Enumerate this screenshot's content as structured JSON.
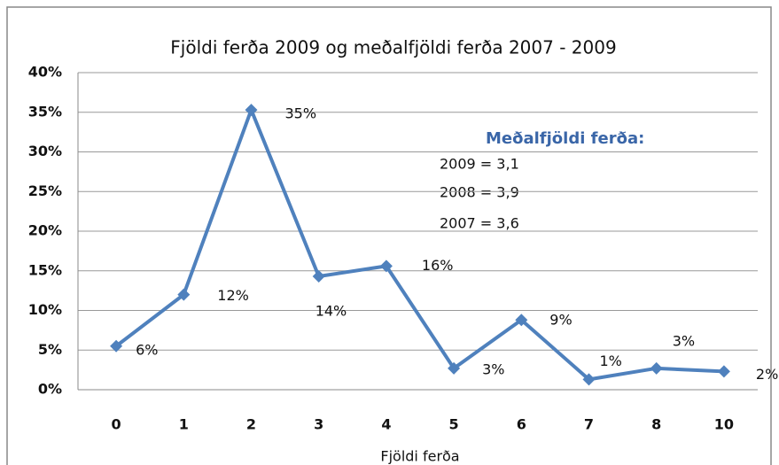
{
  "chart_data": {
    "type": "line",
    "title": "Fjöldi ferða 2009 og meðalfjöldi ferða 2007 - 2009",
    "x_label": "Fjöldi ferða",
    "categories": [
      "0",
      "1",
      "2",
      "3",
      "4",
      "5",
      "6",
      "7",
      "8",
      "10"
    ],
    "series": [
      {
        "name": "2009",
        "color": "#4f81bd",
        "values": [
          5.5,
          12,
          35.3,
          14.3,
          15.6,
          2.7,
          8.8,
          1.3,
          2.7,
          2.3
        ],
        "value_labels": [
          "6%",
          "12%",
          "35%",
          "14%",
          "16%",
          "3%",
          "9%",
          "1%",
          "3%",
          "2%"
        ]
      }
    ],
    "ylim": [
      0,
      40
    ],
    "yticks": [
      {
        "value": 0,
        "label": "0%"
      },
      {
        "value": 5,
        "label": "5%"
      },
      {
        "value": 10,
        "label": "10%"
      },
      {
        "value": 15,
        "label": "15%"
      },
      {
        "value": 20,
        "label": "20%"
      },
      {
        "value": 25,
        "label": "25%"
      },
      {
        "value": 30,
        "label": "30%"
      },
      {
        "value": 35,
        "label": "35%"
      },
      {
        "value": 40,
        "label": "40%"
      }
    ],
    "grid": true,
    "annotations": [
      "Meðalfjöldi ferða:",
      "2009 = 3,1",
      "2008 = 3,9",
      "2007 = 3,6"
    ]
  }
}
